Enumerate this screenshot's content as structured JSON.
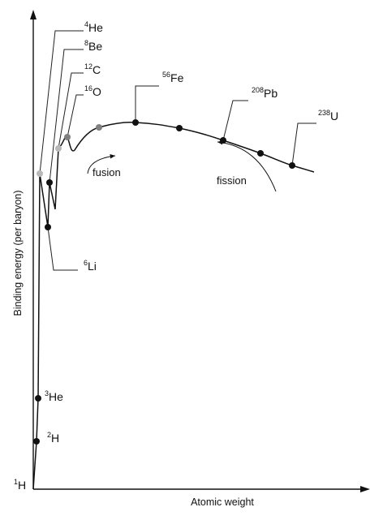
{
  "chart_data": {
    "type": "line",
    "title": "",
    "xlabel": "Atomic weight",
    "ylabel": "Binding energy (per baryon)",
    "grid": false,
    "legend": "none",
    "colors": {
      "line": "#111111",
      "dot_dark": "#111111",
      "dot_light": "#b8b8b8",
      "dot_mid": "#808080",
      "axis": "#111111"
    },
    "isotopes": [
      {
        "mass": "1",
        "symbol": "H",
        "dot": false
      },
      {
        "mass": "2",
        "symbol": "H",
        "dot": true,
        "shade": "dark"
      },
      {
        "mass": "3",
        "symbol": "He",
        "dot": true,
        "shade": "dark"
      },
      {
        "mass": "4",
        "symbol": "He",
        "dot": true,
        "shade": "light"
      },
      {
        "mass": "6",
        "symbol": "Li",
        "dot": true,
        "shade": "dark"
      },
      {
        "mass": "8",
        "symbol": "Be",
        "dot": true,
        "shade": "dark"
      },
      {
        "mass": "12",
        "symbol": "C",
        "dot": true,
        "shade": "light"
      },
      {
        "mass": "16",
        "symbol": "O",
        "dot": true,
        "shade": "mid"
      },
      {
        "mass": "56",
        "symbol": "Fe",
        "dot": true,
        "shade": "dark"
      },
      {
        "mass": "208",
        "symbol": "Pb",
        "dot": true,
        "shade": "dark"
      },
      {
        "mass": "238",
        "symbol": "U",
        "dot": true,
        "shade": "dark"
      }
    ],
    "annotations": [
      {
        "text": "fusion"
      },
      {
        "text": "fission"
      }
    ]
  }
}
